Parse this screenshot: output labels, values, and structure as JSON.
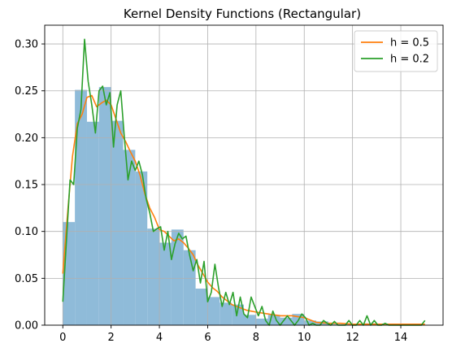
{
  "chart_data": {
    "type": "bar",
    "title": "Kernel Density Functions (Rectangular)",
    "xlabel": "",
    "ylabel": "",
    "xlim": [
      -0.75,
      15.75
    ],
    "ylim": [
      0,
      0.32
    ],
    "grid": true,
    "legend_position": "top-right",
    "x_ticks": [
      0,
      2,
      4,
      6,
      8,
      10,
      12,
      14
    ],
    "y_ticks": [
      0.0,
      0.05,
      0.1,
      0.15,
      0.2,
      0.25,
      0.3
    ],
    "x_tick_labels": [
      "0",
      "2",
      "4",
      "6",
      "8",
      "10",
      "12",
      "14"
    ],
    "y_tick_labels": [
      "0.00",
      "0.05",
      "0.10",
      "0.15",
      "0.20",
      "0.25",
      "0.30"
    ],
    "histogram": {
      "bin_width": 0.5,
      "bin_starts": [
        0,
        0.5,
        1,
        1.5,
        2,
        2.5,
        3,
        3.5,
        4,
        4.5,
        5,
        5.5,
        6,
        6.5,
        7,
        7.5,
        8,
        8.5,
        9,
        9.5,
        10,
        10.5,
        11,
        11.5,
        12,
        12.5,
        13,
        13.5,
        14,
        14.5
      ],
      "values": [
        0.11,
        0.251,
        0.217,
        0.254,
        0.218,
        0.187,
        0.164,
        0.103,
        0.088,
        0.102,
        0.08,
        0.039,
        0.03,
        0.024,
        0.022,
        0.011,
        0.007,
        0.011,
        0.008,
        0.012,
        0.005,
        0.004,
        0.001,
        0.001,
        0.001,
        0.002,
        0.001,
        0.001,
        0.001,
        0.0
      ],
      "color": "#8fbbd9"
    },
    "series": [
      {
        "name": "h = 0.5",
        "color": "#ff7f0e",
        "x": [
          0,
          0.2,
          0.4,
          0.6,
          0.8,
          1.0,
          1.2,
          1.4,
          1.6,
          1.8,
          2.0,
          2.2,
          2.4,
          2.6,
          2.8,
          3.0,
          3.2,
          3.4,
          3.6,
          3.8,
          4.0,
          4.2,
          4.4,
          4.6,
          4.8,
          5.0,
          5.2,
          5.4,
          5.6,
          5.8,
          6.0,
          6.2,
          6.4,
          6.6,
          6.8,
          7.0,
          7.2,
          7.4,
          7.6,
          7.8,
          8.0,
          8.5,
          9.0,
          9.5,
          10.0,
          10.5,
          11.0,
          11.5,
          12.0,
          12.5,
          13.0,
          13.5,
          14.0,
          14.5,
          15.0
        ],
        "y": [
          0.055,
          0.12,
          0.18,
          0.215,
          0.225,
          0.243,
          0.245,
          0.233,
          0.237,
          0.24,
          0.235,
          0.22,
          0.205,
          0.196,
          0.185,
          0.175,
          0.16,
          0.14,
          0.125,
          0.115,
          0.102,
          0.1,
          0.095,
          0.09,
          0.092,
          0.088,
          0.082,
          0.075,
          0.064,
          0.055,
          0.046,
          0.04,
          0.036,
          0.03,
          0.026,
          0.022,
          0.02,
          0.018,
          0.016,
          0.015,
          0.014,
          0.012,
          0.01,
          0.01,
          0.008,
          0.003,
          0.002,
          0.002,
          0.001,
          0.001,
          0.001,
          0.001,
          0.001,
          0.001,
          0.001
        ]
      },
      {
        "name": "h = 0.2",
        "color": "#2ca02c",
        "x": [
          0,
          0.15,
          0.3,
          0.45,
          0.6,
          0.75,
          0.9,
          1.05,
          1.2,
          1.35,
          1.5,
          1.65,
          1.8,
          1.95,
          2.1,
          2.25,
          2.4,
          2.55,
          2.7,
          2.85,
          3.0,
          3.15,
          3.3,
          3.45,
          3.6,
          3.75,
          3.9,
          4.05,
          4.2,
          4.35,
          4.5,
          4.65,
          4.8,
          4.95,
          5.1,
          5.25,
          5.4,
          5.55,
          5.7,
          5.85,
          6.0,
          6.15,
          6.3,
          6.45,
          6.6,
          6.75,
          6.9,
          7.05,
          7.2,
          7.35,
          7.5,
          7.65,
          7.8,
          7.95,
          8.1,
          8.25,
          8.4,
          8.55,
          8.7,
          8.85,
          9.0,
          9.15,
          9.3,
          9.45,
          9.6,
          9.75,
          9.9,
          10.05,
          10.2,
          10.35,
          10.5,
          10.65,
          10.8,
          10.95,
          11.1,
          11.25,
          11.4,
          11.55,
          11.7,
          11.85,
          12.0,
          12.15,
          12.3,
          12.45,
          12.6,
          12.75,
          12.9,
          13.05,
          13.2,
          13.35,
          13.5,
          13.65,
          13.8,
          13.95,
          14.1,
          14.25,
          14.4,
          14.55,
          14.7,
          14.85,
          15.0
        ],
        "y": [
          0.025,
          0.09,
          0.155,
          0.15,
          0.21,
          0.23,
          0.305,
          0.26,
          0.235,
          0.205,
          0.25,
          0.255,
          0.235,
          0.248,
          0.19,
          0.235,
          0.25,
          0.2,
          0.155,
          0.175,
          0.165,
          0.175,
          0.16,
          0.135,
          0.12,
          0.1,
          0.103,
          0.105,
          0.08,
          0.1,
          0.07,
          0.087,
          0.098,
          0.092,
          0.095,
          0.075,
          0.058,
          0.07,
          0.045,
          0.068,
          0.025,
          0.035,
          0.065,
          0.04,
          0.02,
          0.035,
          0.022,
          0.035,
          0.01,
          0.03,
          0.012,
          0.008,
          0.03,
          0.02,
          0.01,
          0.02,
          0.005,
          0.0,
          0.015,
          0.005,
          0.0,
          0.005,
          0.01,
          0.005,
          0.0,
          0.005,
          0.012,
          0.008,
          0.0,
          0.002,
          0.0,
          0.0,
          0.005,
          0.002,
          0.0,
          0.004,
          0.0,
          0.0,
          0.0,
          0.005,
          0.0,
          0.0,
          0.005,
          0.0,
          0.01,
          0.0,
          0.005,
          0.0,
          0.0,
          0.002,
          0.0,
          0.0,
          0.0,
          0.0,
          0.0,
          0.0,
          0.0,
          0.0,
          0.0,
          0.0,
          0.005
        ]
      }
    ]
  }
}
